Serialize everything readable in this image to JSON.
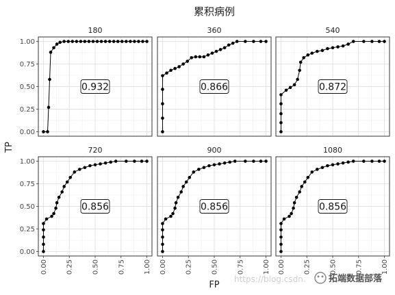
{
  "chart_data": {
    "type": "line",
    "title": "累积病例",
    "xlabel": "FP",
    "ylabel": "TP",
    "xlim": [
      0,
      1
    ],
    "ylim": [
      0,
      1
    ],
    "x_ticks": [
      "0.00",
      "0.25",
      "0.50",
      "0.75",
      "1.00"
    ],
    "y_ticks": [
      "0.00",
      "0.25",
      "0.50",
      "0.75",
      "1.00"
    ],
    "grid": true,
    "panels": [
      {
        "name": "180",
        "auc": "0.932",
        "points": [
          [
            0,
            0
          ],
          [
            0.04,
            0
          ],
          [
            0.05,
            0.27
          ],
          [
            0.06,
            0.58
          ],
          [
            0.07,
            0.88
          ],
          [
            0.1,
            0.93
          ],
          [
            0.13,
            0.97
          ],
          [
            0.16,
            0.99
          ],
          [
            0.2,
            1
          ],
          [
            0.24,
            1
          ],
          [
            0.28,
            1
          ],
          [
            0.32,
            1
          ],
          [
            0.36,
            1
          ],
          [
            0.4,
            1
          ],
          [
            0.44,
            1
          ],
          [
            0.48,
            1
          ],
          [
            0.52,
            1
          ],
          [
            0.56,
            1
          ],
          [
            0.6,
            1
          ],
          [
            0.64,
            1
          ],
          [
            0.68,
            1
          ],
          [
            0.72,
            1
          ],
          [
            0.76,
            1
          ],
          [
            0.8,
            1
          ],
          [
            0.84,
            1
          ],
          [
            0.88,
            1
          ],
          [
            0.92,
            1
          ],
          [
            0.96,
            1
          ],
          [
            1,
            1
          ]
        ]
      },
      {
        "name": "360",
        "auc": "0.866",
        "points": [
          [
            0,
            0
          ],
          [
            0,
            0.15
          ],
          [
            0,
            0.31
          ],
          [
            0,
            0.47
          ],
          [
            0,
            0.62
          ],
          [
            0.04,
            0.65
          ],
          [
            0.08,
            0.68
          ],
          [
            0.12,
            0.7
          ],
          [
            0.16,
            0.72
          ],
          [
            0.2,
            0.75
          ],
          [
            0.24,
            0.78
          ],
          [
            0.28,
            0.82
          ],
          [
            0.32,
            0.83
          ],
          [
            0.36,
            0.83
          ],
          [
            0.4,
            0.83
          ],
          [
            0.44,
            0.85
          ],
          [
            0.48,
            0.87
          ],
          [
            0.52,
            0.89
          ],
          [
            0.56,
            0.91
          ],
          [
            0.6,
            0.93
          ],
          [
            0.64,
            0.96
          ],
          [
            0.68,
            0.98
          ],
          [
            0.72,
            1
          ],
          [
            0.8,
            1
          ],
          [
            0.88,
            1
          ],
          [
            0.95,
            1
          ],
          [
            1,
            1
          ]
        ]
      },
      {
        "name": "540",
        "auc": "0.872",
        "points": [
          [
            0,
            0
          ],
          [
            0,
            0.1
          ],
          [
            0,
            0.2
          ],
          [
            0,
            0.31
          ],
          [
            0,
            0.41
          ],
          [
            0.05,
            0.46
          ],
          [
            0.09,
            0.49
          ],
          [
            0.13,
            0.52
          ],
          [
            0.16,
            0.58
          ],
          [
            0.18,
            0.68
          ],
          [
            0.19,
            0.77
          ],
          [
            0.22,
            0.82
          ],
          [
            0.26,
            0.85
          ],
          [
            0.3,
            0.87
          ],
          [
            0.35,
            0.89
          ],
          [
            0.4,
            0.9
          ],
          [
            0.45,
            0.92
          ],
          [
            0.5,
            0.93
          ],
          [
            0.55,
            0.94
          ],
          [
            0.6,
            0.95
          ],
          [
            0.65,
            0.97
          ],
          [
            0.7,
            1
          ],
          [
            0.8,
            1
          ],
          [
            0.88,
            1
          ],
          [
            0.95,
            1
          ],
          [
            1,
            1
          ]
        ]
      },
      {
        "name": "720",
        "auc": "0.856",
        "points": [
          [
            0,
            0
          ],
          [
            0,
            0.08
          ],
          [
            0,
            0.16
          ],
          [
            0,
            0.24
          ],
          [
            0,
            0.31
          ],
          [
            0.03,
            0.36
          ],
          [
            0.08,
            0.39
          ],
          [
            0.1,
            0.42
          ],
          [
            0.12,
            0.48
          ],
          [
            0.13,
            0.54
          ],
          [
            0.15,
            0.6
          ],
          [
            0.18,
            0.66
          ],
          [
            0.2,
            0.72
          ],
          [
            0.23,
            0.77
          ],
          [
            0.26,
            0.82
          ],
          [
            0.3,
            0.88
          ],
          [
            0.35,
            0.91
          ],
          [
            0.4,
            0.93
          ],
          [
            0.45,
            0.95
          ],
          [
            0.5,
            0.96
          ],
          [
            0.55,
            0.97
          ],
          [
            0.6,
            0.98
          ],
          [
            0.65,
            0.99
          ],
          [
            0.7,
            1
          ],
          [
            0.8,
            1
          ],
          [
            0.88,
            1
          ],
          [
            0.95,
            1
          ],
          [
            1,
            1
          ]
        ]
      },
      {
        "name": "900",
        "auc": "0.856",
        "points": [
          [
            0,
            0
          ],
          [
            0,
            0.08
          ],
          [
            0,
            0.16
          ],
          [
            0,
            0.24
          ],
          [
            0,
            0.31
          ],
          [
            0.03,
            0.36
          ],
          [
            0.08,
            0.39
          ],
          [
            0.1,
            0.42
          ],
          [
            0.12,
            0.48
          ],
          [
            0.13,
            0.54
          ],
          [
            0.15,
            0.6
          ],
          [
            0.18,
            0.66
          ],
          [
            0.2,
            0.72
          ],
          [
            0.23,
            0.77
          ],
          [
            0.26,
            0.82
          ],
          [
            0.3,
            0.88
          ],
          [
            0.35,
            0.91
          ],
          [
            0.4,
            0.93
          ],
          [
            0.45,
            0.95
          ],
          [
            0.5,
            0.96
          ],
          [
            0.55,
            0.97
          ],
          [
            0.6,
            0.98
          ],
          [
            0.65,
            0.99
          ],
          [
            0.7,
            1
          ],
          [
            0.8,
            1
          ],
          [
            0.88,
            1
          ],
          [
            0.95,
            1
          ],
          [
            1,
            1
          ]
        ]
      },
      {
        "name": "1080",
        "auc": "0.856",
        "points": [
          [
            0,
            0
          ],
          [
            0,
            0.08
          ],
          [
            0,
            0.16
          ],
          [
            0,
            0.24
          ],
          [
            0,
            0.31
          ],
          [
            0.03,
            0.36
          ],
          [
            0.08,
            0.39
          ],
          [
            0.1,
            0.42
          ],
          [
            0.12,
            0.48
          ],
          [
            0.13,
            0.54
          ],
          [
            0.15,
            0.6
          ],
          [
            0.18,
            0.66
          ],
          [
            0.2,
            0.72
          ],
          [
            0.23,
            0.77
          ],
          [
            0.26,
            0.82
          ],
          [
            0.3,
            0.88
          ],
          [
            0.35,
            0.91
          ],
          [
            0.4,
            0.93
          ],
          [
            0.45,
            0.95
          ],
          [
            0.5,
            0.96
          ],
          [
            0.55,
            0.97
          ],
          [
            0.6,
            0.98
          ],
          [
            0.65,
            0.99
          ],
          [
            0.7,
            1
          ],
          [
            0.8,
            1
          ],
          [
            0.88,
            1
          ],
          [
            0.95,
            1
          ],
          [
            1,
            1
          ]
        ]
      }
    ]
  },
  "watermark": {
    "url": "https://blog.csdn.",
    "brand": "拓端数据部落"
  },
  "colors": {
    "line": "#000000",
    "grid_major": "#e0e0e0",
    "grid_minor": "#f0f0f0",
    "panel_border": "#333333",
    "strip_bg": "#ffffff"
  }
}
